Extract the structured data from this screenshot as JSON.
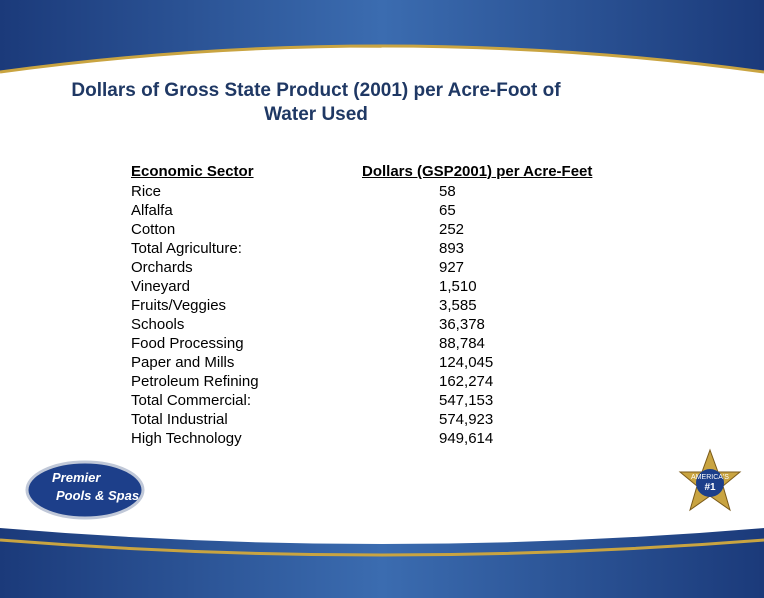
{
  "title": [
    "Dollars of Gross State Product (2001) per Acre-Foot of",
    "Water Used"
  ],
  "table": {
    "header": [
      "Economic Sector",
      "Dollars (GSP2001) per Acre-Feet"
    ],
    "rows": [
      [
        "Rice",
        "58"
      ],
      [
        "Alfalfa",
        "65"
      ],
      [
        "Cotton",
        "252"
      ],
      [
        "Total Agriculture:",
        "893"
      ],
      [
        "Orchards",
        "927"
      ],
      [
        "Vineyard",
        "1,510"
      ],
      [
        "Fruits/Veggies",
        "3,585"
      ],
      [
        "Schools",
        "36,378"
      ],
      [
        "Food Processing",
        "88,784"
      ],
      [
        "Paper and Mills",
        "124,045"
      ],
      [
        "Petroleum Refining",
        "162,274"
      ],
      [
        "Total Commercial:",
        "547,153"
      ],
      [
        "Total Industrial",
        "574,923"
      ],
      [
        "High Technology",
        "949,614"
      ]
    ]
  },
  "logo": [
    "Premier",
    "Pools & Spas"
  ],
  "badge": [
    "AMERICA'S",
    "#1"
  ]
}
